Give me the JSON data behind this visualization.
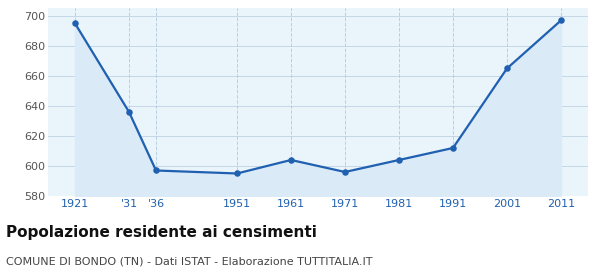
{
  "years": [
    1921,
    1931,
    1936,
    1951,
    1961,
    1971,
    1981,
    1991,
    2001,
    2011
  ],
  "population": [
    695,
    636,
    597,
    595,
    604,
    596,
    604,
    612,
    665,
    697
  ],
  "x_tick_labels": [
    "1921",
    "'31",
    "'36",
    "1951",
    "1961",
    "1971",
    "1981",
    "1991",
    "2001",
    "2011"
  ],
  "ylim": [
    580,
    705
  ],
  "yticks": [
    580,
    600,
    620,
    640,
    660,
    680,
    700
  ],
  "line_color": "#2060b0",
  "fill_color": "#daeaf7",
  "marker_color": "#2060b0",
  "grid_h_color": "#c5d8e8",
  "grid_v_color": "#b8cfe0",
  "bg_color": "#eaf4fb",
  "title": "Popolazione residente ai censimenti",
  "subtitle": "COMUNE DI BONDO (TN) - Dati ISTAT - Elaborazione TUTTITALIA.IT",
  "title_fontsize": 11,
  "subtitle_fontsize": 8,
  "title_color": "#111111",
  "subtitle_color": "#444444",
  "x_tick_color": "#2060b0",
  "y_tick_color": "#555555",
  "tick_fontsize": 8
}
